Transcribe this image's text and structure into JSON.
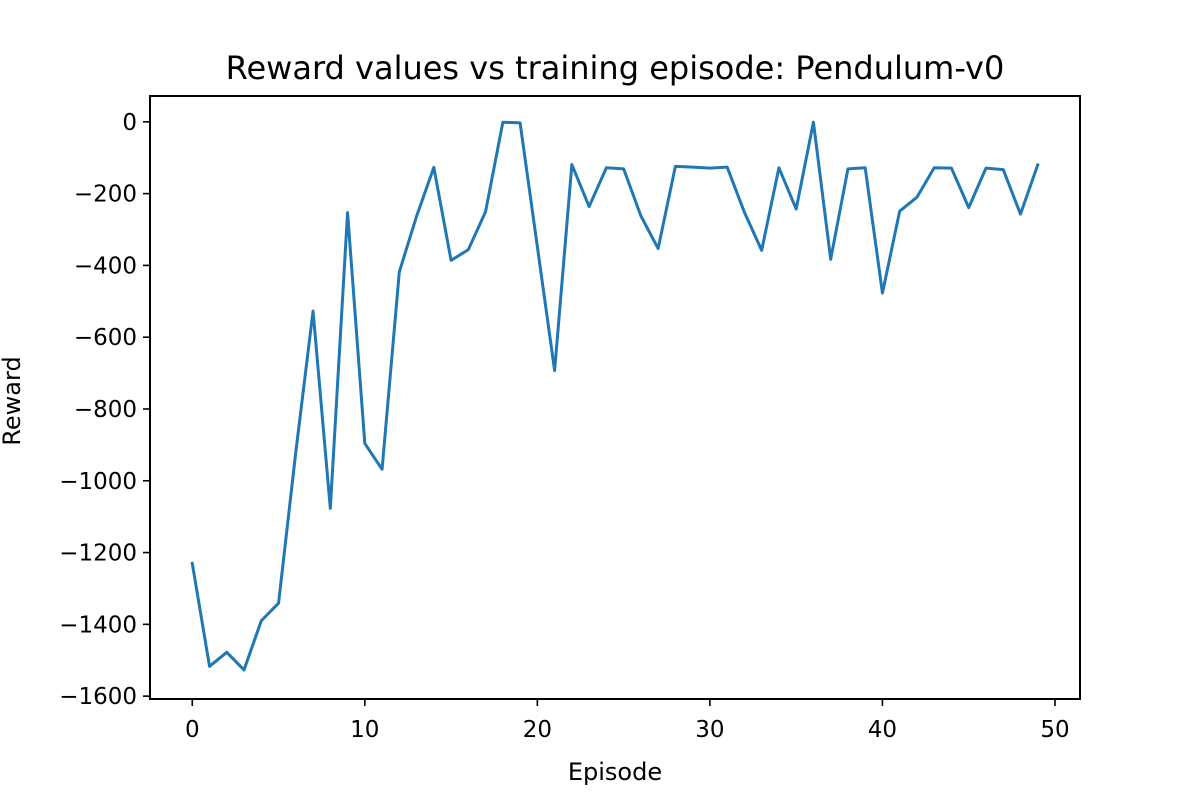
{
  "chart_data": {
    "type": "line",
    "title": "Reward values vs training episode: Pendulum-v0",
    "xlabel": "Episode",
    "ylabel": "Reward",
    "xlim": [
      -2.45,
      51.45
    ],
    "ylim": [
      -1608,
      72
    ],
    "xticks": [
      0,
      10,
      20,
      30,
      40,
      50
    ],
    "xtick_labels": [
      "0",
      "10",
      "20",
      "30",
      "40",
      "50"
    ],
    "yticks": [
      0,
      -200,
      -400,
      -600,
      -800,
      -1000,
      -1200,
      -1400,
      -1600
    ],
    "ytick_labels": [
      "0",
      "−200",
      "−400",
      "−600",
      "−800",
      "−1000",
      "−1200",
      "−1400",
      "−1600"
    ],
    "grid": false,
    "series": [
      {
        "name": "Reward",
        "color": "#1f77b4",
        "x": [
          0,
          1,
          2,
          3,
          4,
          5,
          6,
          7,
          8,
          9,
          10,
          11,
          12,
          13,
          14,
          15,
          16,
          17,
          18,
          19,
          20,
          21,
          22,
          23,
          24,
          25,
          26,
          27,
          28,
          29,
          30,
          31,
          32,
          33,
          34,
          35,
          36,
          37,
          38,
          39,
          40,
          41,
          42,
          43,
          44,
          45,
          46,
          47,
          48,
          49
        ],
        "values": [
          -1230,
          -1517,
          -1478,
          -1527,
          -1390,
          -1341,
          -920,
          -527,
          -1077,
          -253,
          -896,
          -968,
          -418,
          -263,
          -127,
          -386,
          -356,
          -250,
          -1,
          -3,
          -348,
          -693,
          -119,
          -236,
          -128,
          -131,
          -262,
          -353,
          -124,
          -126,
          -129,
          -126,
          -252,
          -358,
          -128,
          -243,
          -1,
          -383,
          -131,
          -128,
          -477,
          -249,
          -210,
          -128,
          -129,
          -239,
          -129,
          -133,
          -257,
          -120
        ]
      }
    ]
  }
}
